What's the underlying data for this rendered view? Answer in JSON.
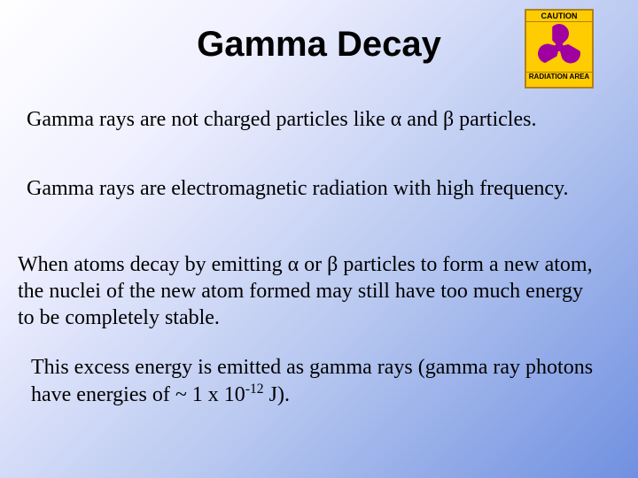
{
  "title": "Gamma Decay",
  "caution": {
    "top": "CAUTION",
    "bottom": "RADIATION AREA",
    "trefoil_color": "#a000a0",
    "bg_color": "#ffcc00",
    "border_color": "#b08020"
  },
  "paragraphs": {
    "p1": "Gamma rays are not charged particles like α and β particles.",
    "p2": "Gamma rays are electromagnetic radiation with high frequency.",
    "p3": "When atoms decay by emitting α or β particles to form a new atom, the nuclei of the new atom formed may still have too much energy to be completely stable.",
    "p4_prefix": "This excess energy is emitted as gamma rays (gamma ray photons have energies of ~ 1 x 10",
    "p4_exp": "-12",
    "p4_suffix": " J)."
  },
  "styles": {
    "title_fontsize": 40,
    "body_fontsize": 24,
    "title_font": "Arial",
    "body_font": "Times New Roman",
    "text_color": "#000000",
    "bg_gradient_start": "#ffffff",
    "bg_gradient_end": "#7090e0"
  }
}
